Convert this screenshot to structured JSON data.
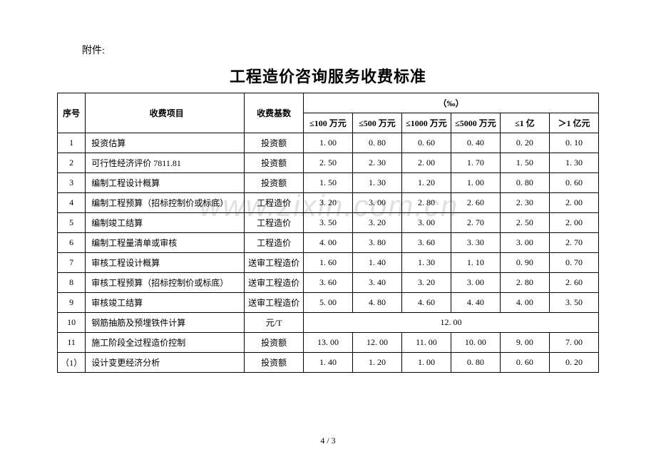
{
  "attachment_label": "附件:",
  "title": "工程造价咨询服务收费标准",
  "watermark": "www.zixin.com.cn",
  "footer": "4 / 3",
  "headers": {
    "seq": "序号",
    "item": "收费项目",
    "base": "收费基数",
    "unit_group": "（‰）",
    "cols": [
      "≤100 万元",
      "≤500 万元",
      "≤1000 万元",
      "≤5000 万元",
      "≤1 亿",
      "＞1 亿元"
    ]
  },
  "rows": [
    {
      "seq": "1",
      "item": "投资估算",
      "base": "投资额",
      "vals": [
        "1. 00",
        "0. 80",
        "0. 60",
        "0. 40",
        "0. 20",
        "0. 10"
      ]
    },
    {
      "seq": "2",
      "item": "可行性经济评价 7811.81",
      "base": "投资额",
      "vals": [
        "2. 50",
        "2. 30",
        "2. 00",
        "1. 70",
        "1. 50",
        "1. 30"
      ]
    },
    {
      "seq": "3",
      "item": "编制工程设计概算",
      "base": "投资额",
      "vals": [
        "1. 50",
        "1. 30",
        "1. 20",
        "1. 00",
        "0. 80",
        "0. 60"
      ]
    },
    {
      "seq": "4",
      "item": "编制工程预算（招标控制价或标底）",
      "base": "工程造价",
      "vals": [
        "3. 20",
        "3. 00",
        "2. 80",
        "2. 60",
        "2. 30",
        "2. 00"
      ]
    },
    {
      "seq": "5",
      "item": "编制竣工结算",
      "base": "工程造价",
      "vals": [
        "3. 50",
        "3. 20",
        "3. 00",
        "2. 70",
        "2. 50",
        "2. 00"
      ]
    },
    {
      "seq": "6",
      "item": "编制工程量清单或审核",
      "base": "工程造价",
      "vals": [
        "4. 00",
        "3. 80",
        "3. 60",
        "3. 30",
        "3. 00",
        "2. 70"
      ]
    },
    {
      "seq": "7",
      "item": "审核工程设计概算",
      "base": "送审工程造价",
      "vals": [
        "1. 60",
        "1. 40",
        "1. 30",
        "1. 10",
        "0. 90",
        "0. 70"
      ]
    },
    {
      "seq": "8",
      "item": "审核工程预算（招标控制价或标底）",
      "base": "送审工程造价",
      "vals": [
        "3. 60",
        "3. 40",
        "3. 20",
        "3. 00",
        "2. 80",
        "2. 60"
      ]
    },
    {
      "seq": "9",
      "item": "审核竣工结算",
      "base": "送审工程造价",
      "vals": [
        "5. 00",
        "4. 80",
        "4. 60",
        "4. 40",
        "4. 00",
        "3. 50"
      ]
    },
    {
      "seq": "10",
      "item": "钢筋抽筋及预埋铁件计算",
      "base": "元/T",
      "merged": "12. 00"
    },
    {
      "seq": "11",
      "item": "施工阶段全过程造价控制",
      "base": "投资额",
      "vals": [
        "13. 00",
        "12. 00",
        "11. 00",
        "10. 00",
        "9. 00",
        "7. 00"
      ]
    },
    {
      "seq": "（1）",
      "item": "设计变更经济分析",
      "base": "投资额",
      "vals": [
        "1. 40",
        "1. 20",
        "1. 00",
        "0. 80",
        "0. 60",
        "0. 20"
      ]
    }
  ]
}
